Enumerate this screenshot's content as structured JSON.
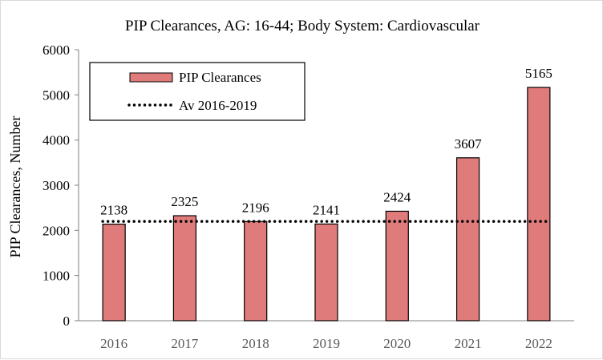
{
  "chart_data": {
    "type": "bar",
    "title": "PIP Clearances, AG: 16-44; Body System: Cardiovascular",
    "xlabel": "",
    "ylabel": "PIP Clearances, Number",
    "categories": [
      "2016",
      "2017",
      "2018",
      "2019",
      "2020",
      "2021",
      "2022"
    ],
    "series": [
      {
        "name": "PIP Clearances",
        "values": [
          2138,
          2325,
          2196,
          2141,
          2424,
          3607,
          5165
        ],
        "color": "#e07b7b",
        "show_labels": true
      }
    ],
    "reference_line": {
      "name": "Av 2016-2019",
      "value": 2200,
      "style": "dotted",
      "color": "#000000"
    },
    "ylim": [
      0,
      6000
    ],
    "yticks": [
      0,
      1000,
      2000,
      3000,
      4000,
      5000,
      6000
    ],
    "grid": false,
    "legend_position": "top-left"
  }
}
